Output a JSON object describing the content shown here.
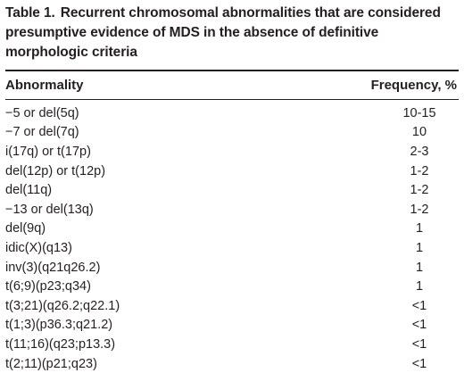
{
  "table": {
    "label": "Table 1.",
    "caption": "Recurrent chromosomal abnormalities that are considered presumptive evidence of MDS in the absence of definitive morphologic criteria",
    "columns": [
      "Abnormality",
      "Frequency, %"
    ],
    "rows": [
      {
        "abnormality": "−5 or del(5q)",
        "frequency": "10-15"
      },
      {
        "abnormality": "−7 or del(7q)",
        "frequency": "10"
      },
      {
        "abnormality": "i(17q) or t(17p)",
        "frequency": "2-3"
      },
      {
        "abnormality": "del(12p) or t(12p)",
        "frequency": "1-2"
      },
      {
        "abnormality": "del(11q)",
        "frequency": "1-2"
      },
      {
        "abnormality": "−13 or del(13q)",
        "frequency": "1-2"
      },
      {
        "abnormality": "del(9q)",
        "frequency": "1"
      },
      {
        "abnormality": "idic(X)(q13)",
        "frequency": "1"
      },
      {
        "abnormality": "inv(3)(q21q26.2)",
        "frequency": "1"
      },
      {
        "abnormality": "t(6;9)(p23;q34)",
        "frequency": "1"
      },
      {
        "abnormality": "t(3;21)(q26.2;q22.1)",
        "frequency": "<1"
      },
      {
        "abnormality": "t(1;3)(p36.3;q21.2)",
        "frequency": "<1"
      },
      {
        "abnormality": "t(11;16)(q23;p13.3)",
        "frequency": "<1"
      },
      {
        "abnormality": "t(2;11)(p21;q23)",
        "frequency": "<1"
      }
    ]
  }
}
